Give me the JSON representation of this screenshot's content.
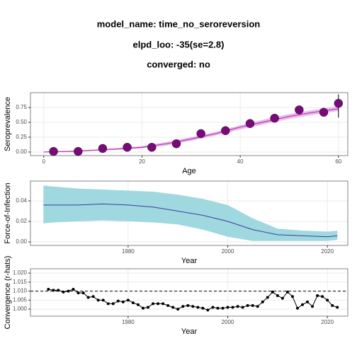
{
  "header": {
    "lines": [
      "model_name: time_no_seroreversion",
      "elpd_loo: -35(se=2.8)",
      "converged: no"
    ]
  },
  "chart_data": [
    {
      "type": "scatter",
      "xlabel": "Age",
      "ylabel": "Seroprevalence",
      "xlim": [
        -2.7,
        61.9
      ],
      "ylim": [
        -0.06,
        1.0
      ],
      "xticks": [
        0,
        20,
        40,
        60
      ],
      "yticks": [
        {
          "value": 0,
          "label": "0.00"
        },
        {
          "value": 0.25,
          "label": "0.25"
        },
        {
          "value": 0.5,
          "label": "0.50"
        },
        {
          "value": 0.75,
          "label": "0.75"
        }
      ],
      "grid": true,
      "fit": {
        "x": [
          0,
          5,
          10,
          15,
          20,
          25,
          30,
          35,
          40,
          45,
          50,
          55,
          60
        ],
        "values": [
          0.0,
          0.01,
          0.03,
          0.05,
          0.08,
          0.14,
          0.22,
          0.31,
          0.42,
          0.51,
          0.6,
          0.67,
          0.73
        ],
        "lower": [
          0.0,
          0.0,
          0.02,
          0.04,
          0.06,
          0.11,
          0.19,
          0.28,
          0.38,
          0.47,
          0.56,
          0.63,
          0.69
        ],
        "upper": [
          0.01,
          0.02,
          0.04,
          0.07,
          0.1,
          0.17,
          0.25,
          0.34,
          0.45,
          0.55,
          0.64,
          0.71,
          0.77
        ],
        "color": "#b03cb0",
        "band_color": "#e8a8e8"
      },
      "points": {
        "x": [
          2,
          7,
          12,
          17,
          22,
          27,
          32,
          37,
          42,
          47,
          52,
          57,
          60
        ],
        "y": [
          0.01,
          0.01,
          0.06,
          0.08,
          0.08,
          0.14,
          0.31,
          0.36,
          0.48,
          0.57,
          0.71,
          0.67,
          0.82
        ],
        "lower": [
          0,
          0,
          0.04,
          0.06,
          0.06,
          0.11,
          0.27,
          0.31,
          0.43,
          0.51,
          0.65,
          0.61,
          0.58
        ],
        "upper": [
          0.03,
          0.03,
          0.09,
          0.11,
          0.11,
          0.18,
          0.35,
          0.41,
          0.53,
          0.63,
          0.77,
          0.73,
          0.97
        ],
        "color": "#7a0a7a"
      }
    },
    {
      "type": "area",
      "xlabel": "Year",
      "ylabel": "Force-of-Infection",
      "xlim": [
        1960.4,
        2024.1
      ],
      "ylim": [
        -0.0034,
        0.0593
      ],
      "xticks": [
        1980,
        2000,
        2020
      ],
      "yticks": [
        {
          "value": 0,
          "label": "0.00"
        },
        {
          "value": 0.02,
          "label": "0.02"
        },
        {
          "value": 0.04,
          "label": "0.04"
        }
      ],
      "grid": true,
      "x": [
        1963,
        1965,
        1970,
        1975,
        1980,
        1985,
        1990,
        1995,
        2000,
        2005,
        2010,
        2015,
        2020,
        2022
      ],
      "values": [
        0.036,
        0.036,
        0.036,
        0.037,
        0.036,
        0.034,
        0.03,
        0.026,
        0.02,
        0.012,
        0.007,
        0.006,
        0.005,
        0.006
      ],
      "lower": [
        0.018,
        0.019,
        0.02,
        0.021,
        0.02,
        0.019,
        0.017,
        0.012,
        0.005,
        0.001,
        0.001,
        0.001,
        0.001,
        0.002
      ],
      "upper": [
        0.055,
        0.054,
        0.052,
        0.051,
        0.05,
        0.049,
        0.046,
        0.042,
        0.036,
        0.023,
        0.013,
        0.011,
        0.01,
        0.011
      ],
      "color": "#3b3b9e",
      "band_color": "#9fd8df"
    },
    {
      "type": "line",
      "xlabel": "Year",
      "ylabel": "Convergence (r-hats)",
      "xlim": [
        1960.4,
        2024.1
      ],
      "ylim": [
        0.9961,
        1.0224
      ],
      "xticks": [
        1980,
        2000,
        2020
      ],
      "yticks": [
        {
          "value": 1.0,
          "label": "1.000"
        },
        {
          "value": 1.005,
          "label": "1.005"
        },
        {
          "value": 1.01,
          "label": "1.010"
        },
        {
          "value": 1.015,
          "label": "1.015"
        },
        {
          "value": 1.02,
          "label": "1.020"
        }
      ],
      "grid": true,
      "reference_line": 1.01,
      "color": "#000000",
      "x": [
        1964,
        1965,
        1966,
        1967,
        1968,
        1969,
        1970,
        1971,
        1972,
        1973,
        1974,
        1975,
        1976,
        1977,
        1978,
        1979,
        1980,
        1981,
        1982,
        1983,
        1984,
        1985,
        1986,
        1987,
        1988,
        1989,
        1990,
        1991,
        1992,
        1993,
        1994,
        1995,
        1996,
        1997,
        1998,
        1999,
        2000,
        2001,
        2002,
        2003,
        2004,
        2005,
        2006,
        2007,
        2008,
        2009,
        2010,
        2011,
        2012,
        2013,
        2014,
        2015,
        2016,
        2017,
        2018,
        2019,
        2020,
        2021,
        2022
      ],
      "values": [
        1.011,
        1.0105,
        1.0105,
        1.0095,
        1.01,
        1.011,
        1.009,
        1.009,
        1.0065,
        1.007,
        1.005,
        1.005,
        1.003,
        1.003,
        1.0045,
        1.004,
        1.005,
        1.0035,
        1.0025,
        1.0005,
        1.001,
        1.003,
        1.003,
        1.003,
        1.002,
        1.001,
        1.0,
        1.0015,
        1.002,
        1.0015,
        1.001,
        1.0005,
        0.9995,
        1.001,
        1.0005,
        1.0005,
        1.001,
        1.001,
        1.0015,
        1.001,
        1.002,
        1.002,
        1.0015,
        1.004,
        1.0065,
        1.0095,
        1.0075,
        1.006,
        1.0095,
        1.007,
        1.0005,
        1.0025,
        1.004,
        1.0015,
        1.0075,
        1.007,
        1.005,
        1.002,
        1.001
      ]
    }
  ]
}
